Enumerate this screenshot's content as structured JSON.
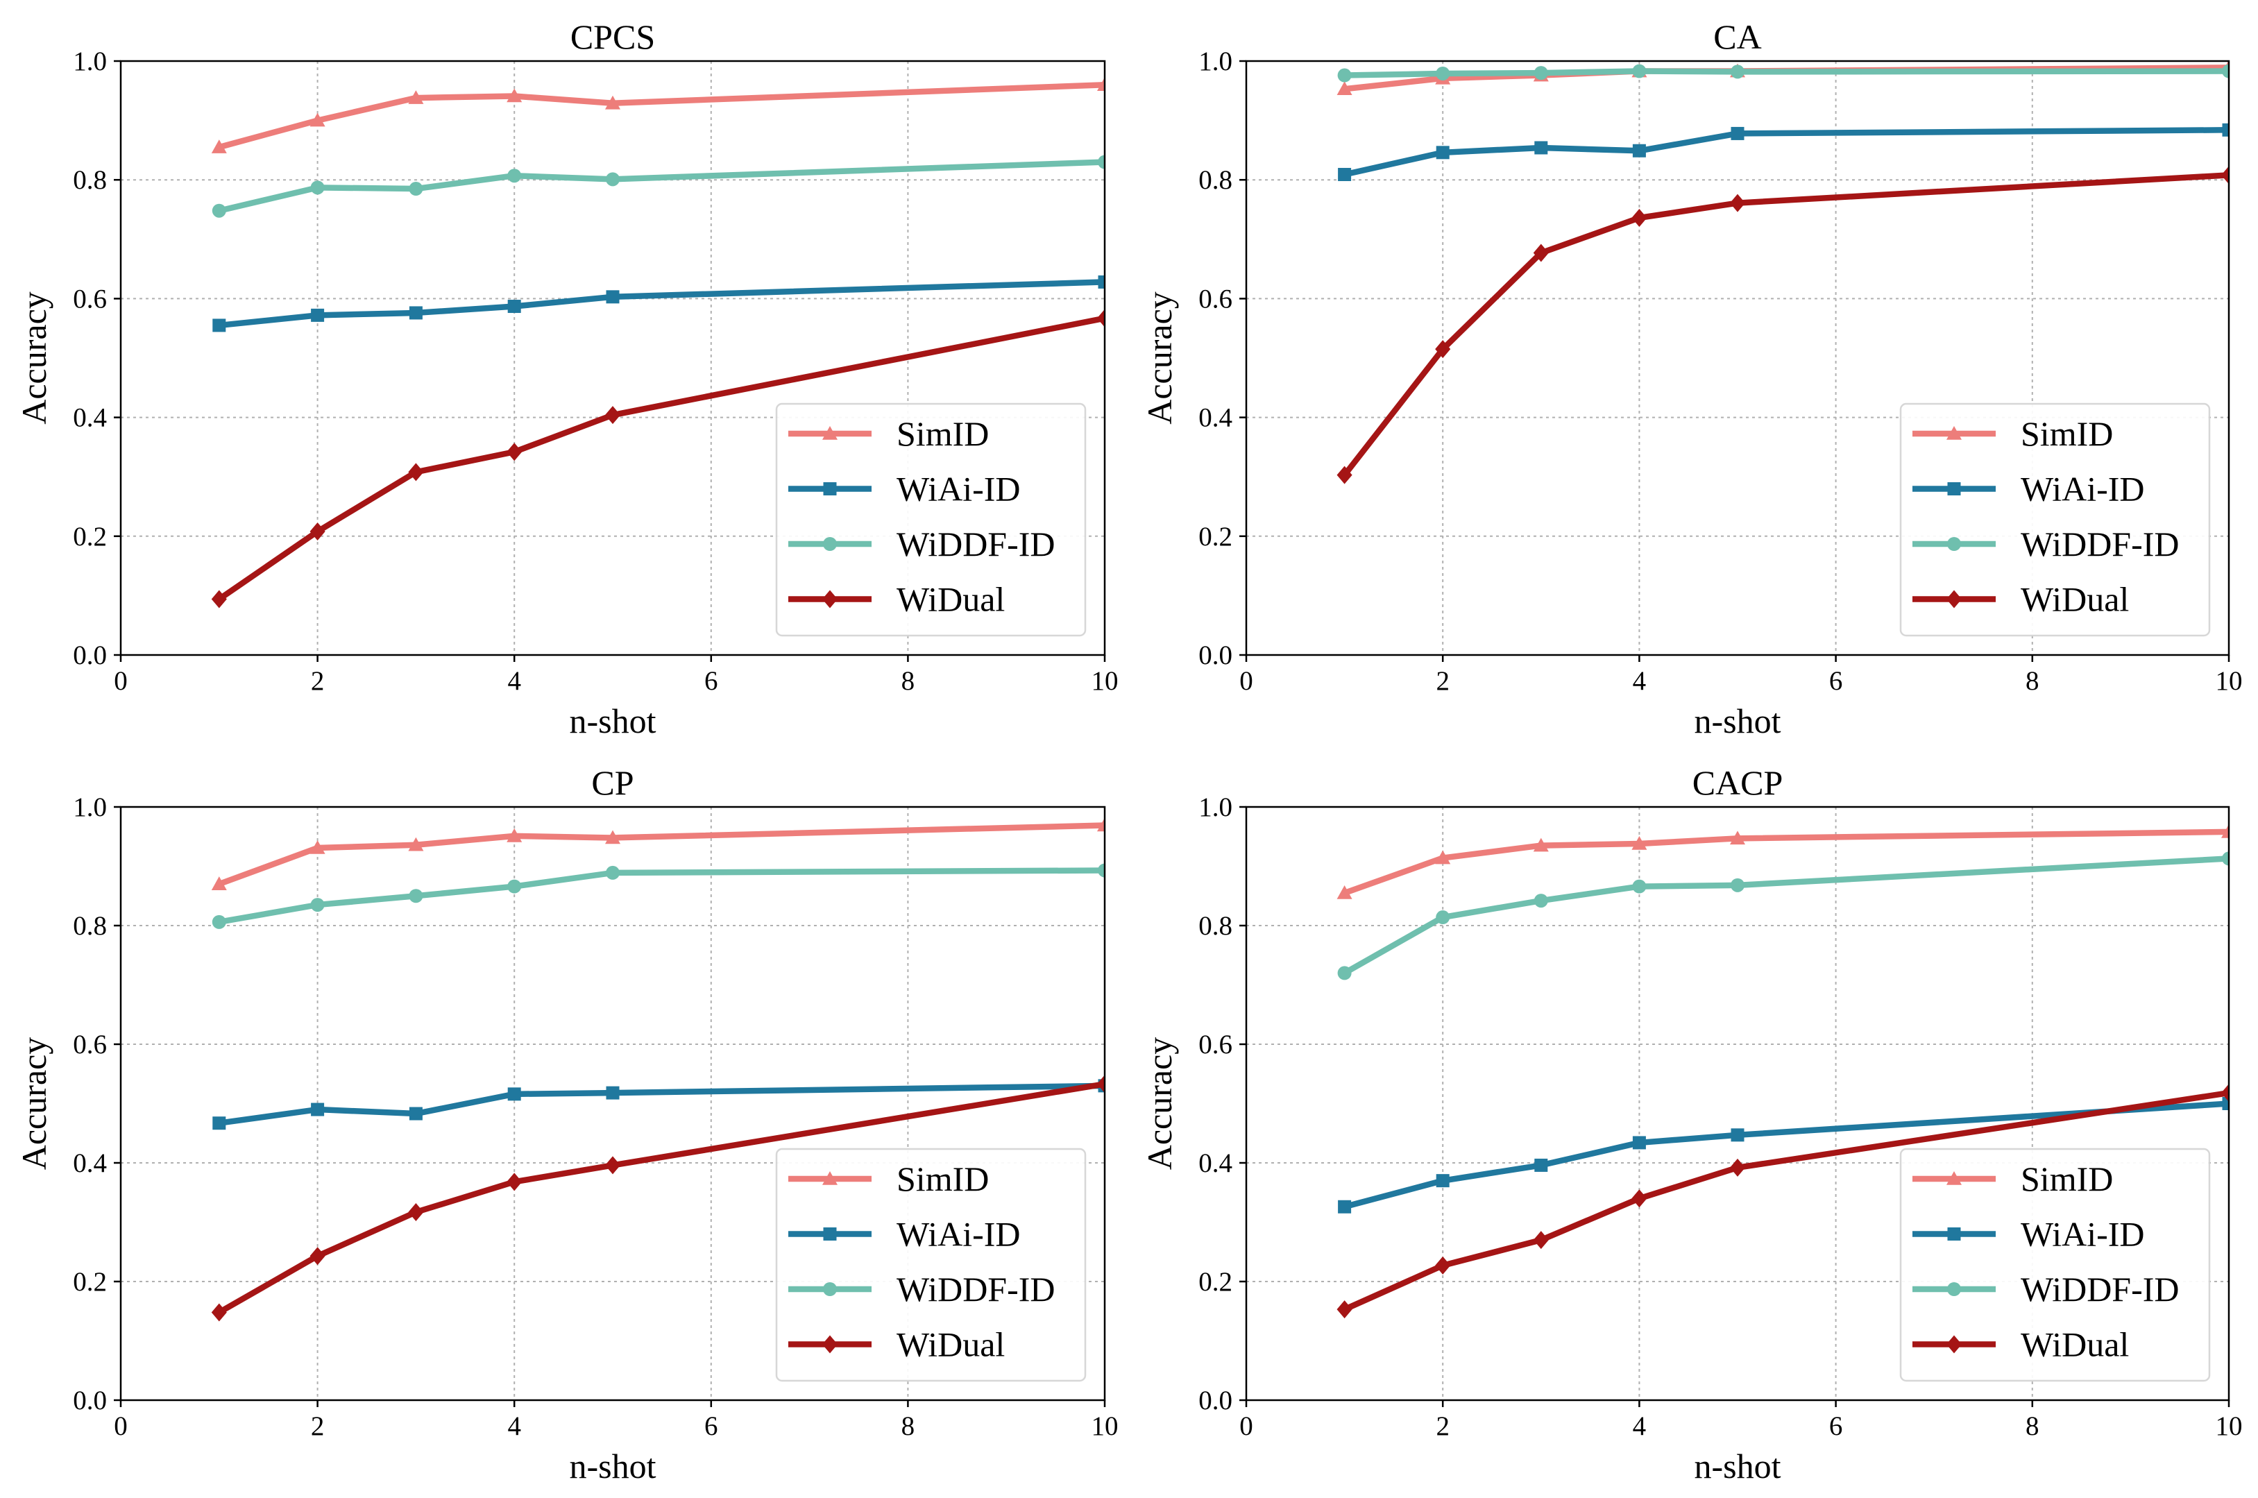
{
  "chart_data": [
    {
      "type": "line",
      "title": "CPCS",
      "xlabel": "n-shot",
      "ylabel": "Accuracy",
      "xlim": [
        0,
        10
      ],
      "ylim": [
        0.0,
        1.0
      ],
      "xticks": [
        "0",
        "2",
        "4",
        "6",
        "8",
        "10"
      ],
      "yticks": [
        "0.0",
        "0.2",
        "0.4",
        "0.6",
        "0.8",
        "1.0"
      ],
      "grid": true,
      "legend_position": "lower-right",
      "x": [
        1,
        2,
        3,
        4,
        5,
        10
      ],
      "series": [
        {
          "name": "SimID",
          "color": "#ed7d7a",
          "marker": "triangle",
          "values": [
            0.855,
            0.9,
            0.938,
            0.941,
            0.929,
            0.96
          ]
        },
        {
          "name": "WiAi-ID",
          "color": "#20789e",
          "marker": "square",
          "values": [
            0.555,
            0.572,
            0.576,
            0.587,
            0.603,
            0.628
          ]
        },
        {
          "name": "WiDDF-ID",
          "color": "#6fbfae",
          "marker": "circle",
          "values": [
            0.748,
            0.787,
            0.785,
            0.807,
            0.801,
            0.83
          ]
        },
        {
          "name": "WiDual",
          "color": "#a51515",
          "marker": "diamond",
          "values": [
            0.094,
            0.208,
            0.308,
            0.342,
            0.404,
            0.567
          ]
        }
      ]
    },
    {
      "type": "line",
      "title": "CA",
      "xlabel": "n-shot",
      "ylabel": "Accuracy",
      "xlim": [
        0,
        10
      ],
      "ylim": [
        0.0,
        1.0
      ],
      "xticks": [
        "0",
        "2",
        "4",
        "6",
        "8",
        "10"
      ],
      "yticks": [
        "0.0",
        "0.2",
        "0.4",
        "0.6",
        "0.8",
        "1.0"
      ],
      "grid": true,
      "legend_position": "lower-right",
      "x": [
        1,
        2,
        3,
        4,
        5,
        10
      ],
      "series": [
        {
          "name": "SimID",
          "color": "#ed7d7a",
          "marker": "triangle",
          "values": [
            0.953,
            0.971,
            0.976,
            0.983,
            0.983,
            0.989
          ]
        },
        {
          "name": "WiAi-ID",
          "color": "#20789e",
          "marker": "square",
          "values": [
            0.809,
            0.846,
            0.854,
            0.849,
            0.878,
            0.884
          ]
        },
        {
          "name": "WiDDF-ID",
          "color": "#6fbfae",
          "marker": "circle",
          "values": [
            0.976,
            0.979,
            0.98,
            0.983,
            0.982,
            0.983
          ]
        },
        {
          "name": "WiDual",
          "color": "#a51515",
          "marker": "diamond",
          "values": [
            0.303,
            0.515,
            0.677,
            0.736,
            0.761,
            0.808
          ]
        }
      ]
    },
    {
      "type": "line",
      "title": "CP",
      "xlabel": "n-shot",
      "ylabel": "Accuracy",
      "xlim": [
        0,
        10
      ],
      "ylim": [
        0.0,
        1.0
      ],
      "xticks": [
        "0",
        "2",
        "4",
        "6",
        "8",
        "10"
      ],
      "yticks": [
        "0.0",
        "0.2",
        "0.4",
        "0.6",
        "0.8",
        "1.0"
      ],
      "grid": true,
      "legend_position": "lower-right",
      "x": [
        1,
        2,
        3,
        4,
        5,
        10
      ],
      "series": [
        {
          "name": "SimID",
          "color": "#ed7d7a",
          "marker": "triangle",
          "values": [
            0.87,
            0.931,
            0.936,
            0.951,
            0.948,
            0.969
          ]
        },
        {
          "name": "WiAi-ID",
          "color": "#20789e",
          "marker": "square",
          "values": [
            0.467,
            0.49,
            0.483,
            0.516,
            0.518,
            0.53
          ]
        },
        {
          "name": "WiDDF-ID",
          "color": "#6fbfae",
          "marker": "circle",
          "values": [
            0.806,
            0.835,
            0.85,
            0.866,
            0.889,
            0.893
          ]
        },
        {
          "name": "WiDual",
          "color": "#a51515",
          "marker": "diamond",
          "values": [
            0.148,
            0.243,
            0.317,
            0.368,
            0.396,
            0.533
          ]
        }
      ]
    },
    {
      "type": "line",
      "title": "CACP",
      "xlabel": "n-shot",
      "ylabel": "Accuracy",
      "xlim": [
        0,
        10
      ],
      "ylim": [
        0.0,
        1.0
      ],
      "xticks": [
        "0",
        "2",
        "4",
        "6",
        "8",
        "10"
      ],
      "yticks": [
        "0.0",
        "0.2",
        "0.4",
        "0.6",
        "0.8",
        "1.0"
      ],
      "grid": true,
      "legend_position": "lower-right",
      "x": [
        1,
        2,
        3,
        4,
        5,
        10
      ],
      "series": [
        {
          "name": "SimID",
          "color": "#ed7d7a",
          "marker": "triangle",
          "values": [
            0.855,
            0.914,
            0.935,
            0.938,
            0.947,
            0.958
          ]
        },
        {
          "name": "WiAi-ID",
          "color": "#20789e",
          "marker": "square",
          "values": [
            0.326,
            0.37,
            0.396,
            0.434,
            0.447,
            0.5
          ]
        },
        {
          "name": "WiDDF-ID",
          "color": "#6fbfae",
          "marker": "circle",
          "values": [
            0.72,
            0.814,
            0.842,
            0.866,
            0.868,
            0.913
          ]
        },
        {
          "name": "WiDual",
          "color": "#a51515",
          "marker": "diamond",
          "values": [
            0.153,
            0.227,
            0.27,
            0.34,
            0.392,
            0.518
          ]
        }
      ]
    }
  ]
}
